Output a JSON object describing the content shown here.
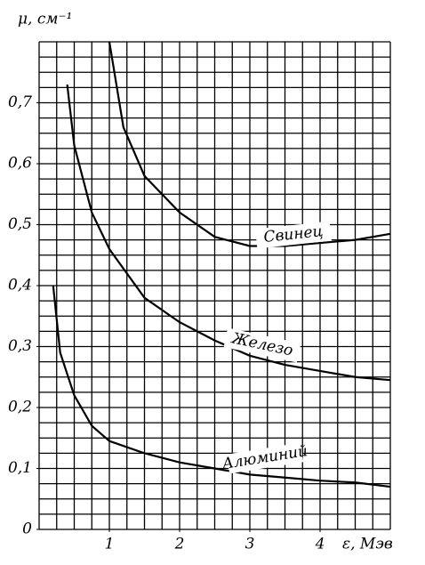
{
  "chart_data": {
    "type": "line",
    "ylabel": "μ, см⁻¹",
    "xlabel": "ε, Мэв",
    "xlim": [
      0,
      5
    ],
    "ylim": [
      0,
      0.8
    ],
    "xticks": [
      1,
      2,
      3,
      4
    ],
    "yticks": [
      0,
      {
        "value": 0.1,
        "label": "0,1"
      },
      {
        "value": 0.2,
        "label": "0,2"
      },
      {
        "value": 0.3,
        "label": "0,3"
      },
      {
        "value": 0.4,
        "label": "0,4"
      },
      {
        "value": 0.5,
        "label": "0,5"
      },
      {
        "value": 0.6,
        "label": "0,6"
      },
      {
        "value": 0.7,
        "label": "0,7"
      }
    ],
    "grid": true,
    "minor_xgrid": [
      0,
      0.25,
      0.5,
      0.75,
      1,
      1.25,
      1.5,
      1.75,
      2,
      2.25,
      2.5,
      2.75,
      3,
      3.25,
      3.5,
      3.75,
      4,
      4.25,
      4.5,
      4.75,
      5
    ],
    "minor_ygrid": [
      0,
      0.025,
      0.05,
      0.075,
      0.1,
      0.125,
      0.15,
      0.175,
      0.2,
      0.225,
      0.25,
      0.275,
      0.3,
      0.325,
      0.35,
      0.375,
      0.4,
      0.425,
      0.45,
      0.475,
      0.5,
      0.525,
      0.55,
      0.575,
      0.6,
      0.625,
      0.65,
      0.675,
      0.7,
      0.725,
      0.75,
      0.775,
      0.8
    ],
    "series": [
      {
        "name": "Свинец",
        "color": "#000000",
        "x": [
          1.0,
          1.2,
          1.5,
          2,
          2.5,
          3,
          3.5,
          4,
          4.5,
          5
        ],
        "values": [
          0.8,
          0.66,
          0.58,
          0.52,
          0.48,
          0.465,
          0.465,
          0.47,
          0.475,
          0.485
        ]
      },
      {
        "name": "Железо",
        "color": "#000000",
        "x": [
          0.4,
          0.5,
          0.75,
          1,
          1.5,
          2,
          2.5,
          3,
          3.5,
          4,
          4.5,
          5
        ],
        "values": [
          0.73,
          0.63,
          0.52,
          0.46,
          0.38,
          0.34,
          0.31,
          0.285,
          0.27,
          0.26,
          0.25,
          0.245
        ]
      },
      {
        "name": "Алюминий",
        "color": "#000000",
        "x": [
          0.2,
          0.3,
          0.5,
          0.75,
          1,
          1.5,
          2,
          2.5,
          3,
          3.5,
          4,
          4.5,
          5
        ],
        "values": [
          0.4,
          0.29,
          0.22,
          0.17,
          0.145,
          0.125,
          0.11,
          0.1,
          0.09,
          0.085,
          0.08,
          0.077,
          0.07
        ]
      }
    ]
  }
}
